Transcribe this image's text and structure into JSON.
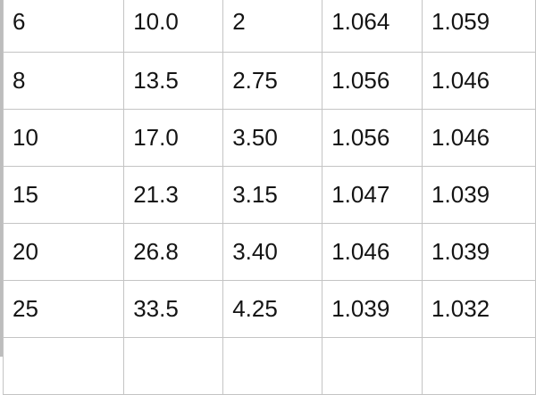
{
  "table": {
    "rows": [
      [
        "6",
        "10.0",
        "2",
        "1.064",
        "1.059"
      ],
      [
        "8",
        "13.5",
        "2.75",
        "1.056",
        "1.046"
      ],
      [
        "10",
        "17.0",
        "3.50",
        "1.056",
        "1.046"
      ],
      [
        "15",
        "21.3",
        "3.15",
        "1.047",
        "1.039"
      ],
      [
        "20",
        "26.8",
        "3.40",
        "1.046",
        "1.039"
      ],
      [
        "25",
        "33.5",
        "4.25",
        "1.039",
        "1.032"
      ],
      [
        "",
        "",
        "",
        "",
        ""
      ]
    ]
  }
}
